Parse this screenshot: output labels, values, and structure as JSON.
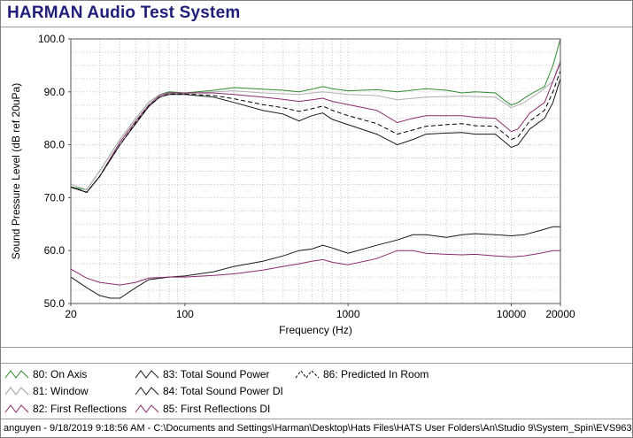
{
  "app": {
    "title": "HARMAN Audio Test System"
  },
  "footer": {
    "text": "anguyen - 9/18/2019 9:18:56 AM - C:\\Documents and Settings\\Harman\\Desktop\\Hats Files\\HATS User Folders\\An\\Studio 9\\System_Spin\\EVS963_"
  },
  "legend": [
    {
      "label": "80: On Axis",
      "color": "#2e8b2e"
    },
    {
      "label": "81: Window",
      "color": "#b0b0b0"
    },
    {
      "label": "82: First Reflections",
      "color": "#8b2a6e"
    },
    {
      "label": "83: Total Sound Power",
      "color": "#1a1a1a"
    },
    {
      "label": "84: Total Sound Power DI",
      "color": "#1a1a1a"
    },
    {
      "label": "85: First Reflections DI",
      "color": "#8b2a6e"
    },
    {
      "label": "86: Predicted In Room",
      "color": "#000000"
    }
  ],
  "chart_data": {
    "type": "line",
    "title": "",
    "xlabel": "Frequency (Hz)",
    "ylabel": "Sound Pressure Level (dB ref 20uPa)",
    "xscale": "log",
    "xlim": [
      20,
      20000
    ],
    "ylim": [
      50,
      100
    ],
    "xticks": [
      20,
      100,
      1000,
      10000,
      20000
    ],
    "xtick_labels": [
      "20",
      "100",
      "1000",
      "10000",
      "20000"
    ],
    "yticks": [
      50,
      60,
      70,
      80,
      90,
      100
    ],
    "ytick_labels": [
      "50.0",
      "60.0",
      "70.0",
      "80.0",
      "90.0",
      "100.0"
    ],
    "grid": true,
    "series": [
      {
        "name": "80: On Axis",
        "color": "#2e8b2e",
        "dash": "",
        "points": [
          [
            20,
            72
          ],
          [
            25,
            71.5
          ],
          [
            30,
            75
          ],
          [
            40,
            81
          ],
          [
            50,
            85
          ],
          [
            60,
            88
          ],
          [
            70,
            89.5
          ],
          [
            80,
            90
          ],
          [
            100,
            89.8
          ],
          [
            120,
            90
          ],
          [
            150,
            90.3
          ],
          [
            200,
            90.8
          ],
          [
            300,
            90.5
          ],
          [
            400,
            90.3
          ],
          [
            500,
            90
          ],
          [
            600,
            90.5
          ],
          [
            700,
            91
          ],
          [
            800,
            90.6
          ],
          [
            1000,
            90.2
          ],
          [
            1500,
            90.4
          ],
          [
            2000,
            90
          ],
          [
            3000,
            90.6
          ],
          [
            4000,
            90.3
          ],
          [
            5000,
            89.8
          ],
          [
            6000,
            90
          ],
          [
            8000,
            89.8
          ],
          [
            9000,
            88.5
          ],
          [
            10000,
            87.5
          ],
          [
            11000,
            88
          ],
          [
            13000,
            89.5
          ],
          [
            16000,
            91
          ],
          [
            18000,
            95
          ],
          [
            20000,
            100
          ]
        ]
      },
      {
        "name": "81: Window",
        "color": "#b0b0b0",
        "dash": "",
        "points": [
          [
            20,
            72.5
          ],
          [
            25,
            71.5
          ],
          [
            30,
            75
          ],
          [
            40,
            81
          ],
          [
            50,
            85
          ],
          [
            60,
            88
          ],
          [
            70,
            89.5
          ],
          [
            80,
            89.8
          ],
          [
            100,
            89.7
          ],
          [
            150,
            90
          ],
          [
            200,
            90.2
          ],
          [
            300,
            89.8
          ],
          [
            500,
            89.5
          ],
          [
            700,
            90
          ],
          [
            1000,
            89.5
          ],
          [
            1500,
            89.3
          ],
          [
            2000,
            88.5
          ],
          [
            3000,
            89
          ],
          [
            5000,
            89.2
          ],
          [
            8000,
            89
          ],
          [
            10000,
            87
          ],
          [
            12000,
            88
          ],
          [
            15000,
            90
          ],
          [
            18000,
            92
          ],
          [
            20000,
            96
          ]
        ]
      },
      {
        "name": "82: First Reflections",
        "color": "#8b2a6e",
        "dash": "",
        "points": [
          [
            20,
            72
          ],
          [
            25,
            71
          ],
          [
            30,
            74
          ],
          [
            40,
            80.5
          ],
          [
            50,
            84.5
          ],
          [
            60,
            87.5
          ],
          [
            70,
            89.3
          ],
          [
            80,
            89.8
          ],
          [
            100,
            89.8
          ],
          [
            150,
            89.8
          ],
          [
            200,
            89.5
          ],
          [
            300,
            89
          ],
          [
            400,
            88.6
          ],
          [
            500,
            88.2
          ],
          [
            600,
            88.5
          ],
          [
            700,
            88.8
          ],
          [
            800,
            88.2
          ],
          [
            1000,
            87.6
          ],
          [
            1500,
            86.5
          ],
          [
            2000,
            84.2
          ],
          [
            2500,
            85
          ],
          [
            3000,
            85.5
          ],
          [
            4000,
            85.5
          ],
          [
            5000,
            85.5
          ],
          [
            6000,
            85.2
          ],
          [
            8000,
            85
          ],
          [
            10000,
            82.5
          ],
          [
            11000,
            83
          ],
          [
            13000,
            86
          ],
          [
            16000,
            88
          ],
          [
            18000,
            92
          ],
          [
            20000,
            95.5
          ]
        ]
      },
      {
        "name": "83: Total Sound Power",
        "color": "#1a1a1a",
        "dash": "",
        "points": [
          [
            20,
            72
          ],
          [
            25,
            71
          ],
          [
            30,
            74
          ],
          [
            40,
            80
          ],
          [
            50,
            84
          ],
          [
            60,
            87.2
          ],
          [
            70,
            89
          ],
          [
            80,
            89.5
          ],
          [
            100,
            89.5
          ],
          [
            150,
            89
          ],
          [
            200,
            88
          ],
          [
            300,
            86.5
          ],
          [
            400,
            85.8
          ],
          [
            500,
            84.5
          ],
          [
            600,
            85.5
          ],
          [
            700,
            86
          ],
          [
            800,
            84.8
          ],
          [
            1000,
            83.8
          ],
          [
            1500,
            82
          ],
          [
            2000,
            80
          ],
          [
            2500,
            81
          ],
          [
            3000,
            82
          ],
          [
            4000,
            82.2
          ],
          [
            5000,
            82.3
          ],
          [
            6000,
            82
          ],
          [
            8000,
            82
          ],
          [
            10000,
            79.5
          ],
          [
            11000,
            80
          ],
          [
            13000,
            83
          ],
          [
            16000,
            85
          ],
          [
            18000,
            88
          ],
          [
            20000,
            92.5
          ]
        ]
      },
      {
        "name": "84: Total Sound Power DI",
        "color": "#1a1a1a",
        "dash": "",
        "points": [
          [
            20,
            55
          ],
          [
            25,
            53
          ],
          [
            30,
            51.5
          ],
          [
            35,
            51
          ],
          [
            40,
            51
          ],
          [
            50,
            53
          ],
          [
            60,
            54.5
          ],
          [
            80,
            55
          ],
          [
            100,
            55.2
          ],
          [
            150,
            56
          ],
          [
            200,
            57
          ],
          [
            300,
            58
          ],
          [
            400,
            59
          ],
          [
            500,
            60
          ],
          [
            600,
            60.3
          ],
          [
            700,
            61
          ],
          [
            800,
            60.5
          ],
          [
            1000,
            59.5
          ],
          [
            1500,
            61
          ],
          [
            2000,
            62
          ],
          [
            2500,
            63
          ],
          [
            3000,
            63
          ],
          [
            4000,
            62.5
          ],
          [
            5000,
            63
          ],
          [
            6000,
            63.2
          ],
          [
            8000,
            63
          ],
          [
            10000,
            62.8
          ],
          [
            12000,
            63
          ],
          [
            15000,
            63.8
          ],
          [
            18000,
            64.5
          ],
          [
            20000,
            64.5
          ]
        ]
      },
      {
        "name": "85: First Reflections DI",
        "color": "#8b2a6e",
        "dash": "",
        "points": [
          [
            20,
            56.5
          ],
          [
            25,
            54.8
          ],
          [
            30,
            54
          ],
          [
            40,
            53.5
          ],
          [
            50,
            54
          ],
          [
            60,
            54.8
          ],
          [
            80,
            55
          ],
          [
            100,
            55
          ],
          [
            150,
            55.3
          ],
          [
            200,
            55.6
          ],
          [
            300,
            56.3
          ],
          [
            400,
            57
          ],
          [
            500,
            57.5
          ],
          [
            600,
            58
          ],
          [
            700,
            58.3
          ],
          [
            800,
            57.8
          ],
          [
            1000,
            57.3
          ],
          [
            1500,
            58.5
          ],
          [
            2000,
            60
          ],
          [
            2500,
            60
          ],
          [
            3000,
            59.5
          ],
          [
            4000,
            59.3
          ],
          [
            5000,
            59.2
          ],
          [
            6000,
            59.3
          ],
          [
            8000,
            59
          ],
          [
            10000,
            58.8
          ],
          [
            12000,
            59
          ],
          [
            15000,
            59.5
          ],
          [
            18000,
            60
          ],
          [
            20000,
            60
          ]
        ]
      },
      {
        "name": "86: Predicted In Room",
        "color": "#000000",
        "dash": "5,3",
        "points": [
          [
            20,
            72
          ],
          [
            25,
            71
          ],
          [
            30,
            74
          ],
          [
            40,
            80
          ],
          [
            50,
            84.2
          ],
          [
            60,
            87.3
          ],
          [
            70,
            89
          ],
          [
            80,
            89.6
          ],
          [
            100,
            89.6
          ],
          [
            150,
            89.3
          ],
          [
            200,
            88.7
          ],
          [
            300,
            87.6
          ],
          [
            400,
            87
          ],
          [
            500,
            86.3
          ],
          [
            600,
            86.8
          ],
          [
            700,
            87.3
          ],
          [
            800,
            86.5
          ],
          [
            1000,
            85.5
          ],
          [
            1500,
            84
          ],
          [
            2000,
            82
          ],
          [
            2500,
            82.8
          ],
          [
            3000,
            83.5
          ],
          [
            4000,
            83.8
          ],
          [
            5000,
            84
          ],
          [
            6000,
            83.6
          ],
          [
            8000,
            83.5
          ],
          [
            10000,
            81
          ],
          [
            11000,
            81.5
          ],
          [
            13000,
            84.5
          ],
          [
            16000,
            86.5
          ],
          [
            18000,
            90
          ],
          [
            20000,
            94
          ]
        ]
      }
    ]
  }
}
